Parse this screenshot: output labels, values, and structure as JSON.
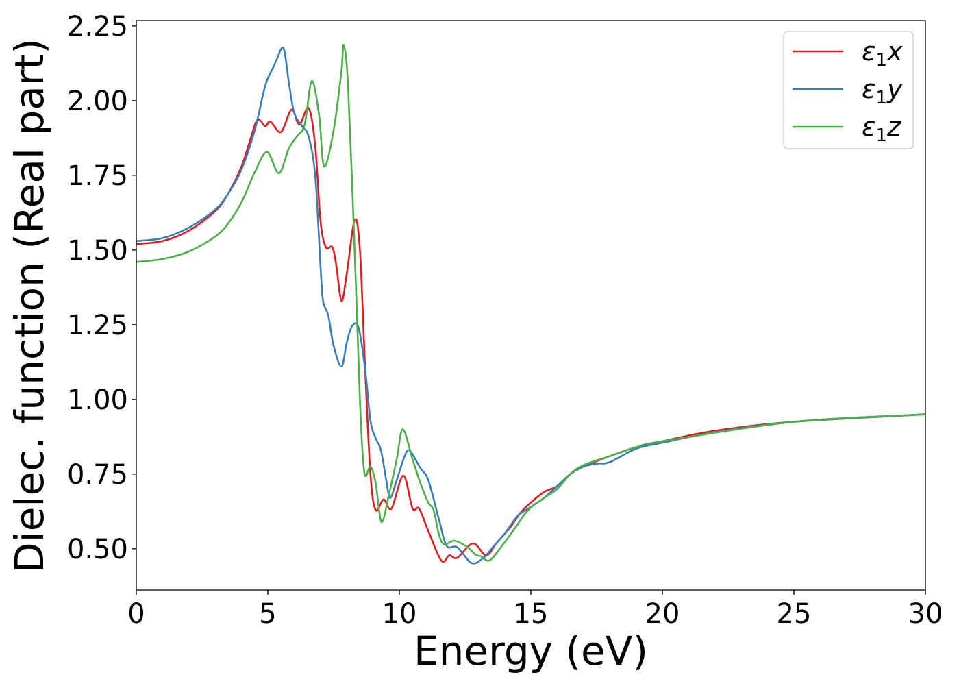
{
  "chart_data": {
    "type": "line",
    "title": "",
    "xlabel": "Energy (eV)",
    "ylabel": "Dielec. function (Real part)",
    "xlim": [
      0,
      30
    ],
    "ylim": [
      0.362,
      2.268
    ],
    "xticks": [
      0,
      5,
      10,
      15,
      20,
      25,
      30
    ],
    "xtick_labels": [
      "0",
      "5",
      "10",
      "15",
      "20",
      "25",
      "30"
    ],
    "yticks": [
      0.5,
      0.75,
      1.0,
      1.25,
      1.5,
      1.75,
      2.0,
      2.25
    ],
    "ytick_labels": [
      "0.50",
      "0.75",
      "1.00",
      "1.25",
      "1.50",
      "1.75",
      "2.00",
      "2.25"
    ],
    "grid": false,
    "legend_position": "top-right",
    "series": [
      {
        "name": "ε1x",
        "label_main": "ε",
        "label_sub": "1",
        "label_var": "x",
        "color": "#e41a1c",
        "x": [
          0,
          1,
          2,
          3,
          3.5,
          4,
          4.3,
          4.6,
          4.9,
          5.1,
          5.5,
          5.9,
          6.2,
          6.55,
          6.8,
          7.0,
          7.2,
          7.45,
          7.6,
          7.8,
          8.0,
          8.3,
          8.5,
          8.7,
          8.9,
          9.1,
          9.4,
          9.7,
          10.15,
          10.5,
          10.75,
          11.1,
          11.6,
          11.9,
          12.2,
          12.8,
          13.3,
          13.7,
          14.2,
          14.6,
          15,
          15.5,
          16,
          16.5,
          17,
          18,
          19,
          20,
          22,
          25,
          30
        ],
        "y": [
          1.52,
          1.53,
          1.565,
          1.63,
          1.69,
          1.78,
          1.86,
          1.935,
          1.915,
          1.93,
          1.895,
          1.97,
          1.92,
          1.975,
          1.85,
          1.6,
          1.51,
          1.51,
          1.45,
          1.33,
          1.42,
          1.6,
          1.5,
          1.1,
          0.75,
          0.63,
          0.665,
          0.635,
          0.745,
          0.635,
          0.635,
          0.56,
          0.46,
          0.478,
          0.47,
          0.518,
          0.478,
          0.52,
          0.57,
          0.62,
          0.655,
          0.69,
          0.71,
          0.75,
          0.775,
          0.81,
          0.84,
          0.86,
          0.895,
          0.925,
          0.95
        ]
      },
      {
        "name": "ε1y",
        "label_main": "ε",
        "label_sub": "1",
        "label_var": "y",
        "color": "#377eb8",
        "x": [
          0,
          1,
          2,
          3,
          3.5,
          4,
          4.5,
          4.9,
          5.2,
          5.35,
          5.6,
          5.8,
          6.0,
          6.3,
          6.55,
          6.8,
          7.0,
          7.1,
          7.3,
          7.5,
          7.8,
          8.0,
          8.2,
          8.45,
          8.7,
          8.9,
          9.1,
          9.3,
          9.5,
          9.65,
          9.9,
          10.2,
          10.4,
          10.8,
          11.1,
          11.5,
          11.8,
          12.2,
          12.75,
          13.2,
          13.6,
          14,
          14.5,
          15,
          15.5,
          16,
          16.5,
          17,
          17.5,
          18,
          19,
          20,
          22,
          25,
          30
        ],
        "y": [
          1.53,
          1.54,
          1.575,
          1.635,
          1.69,
          1.77,
          1.9,
          2.05,
          2.11,
          2.14,
          2.175,
          2.06,
          1.96,
          1.915,
          1.88,
          1.75,
          1.45,
          1.33,
          1.28,
          1.18,
          1.11,
          1.19,
          1.245,
          1.24,
          1.1,
          0.93,
          0.87,
          0.83,
          0.73,
          0.67,
          0.73,
          0.81,
          0.828,
          0.77,
          0.73,
          0.6,
          0.51,
          0.505,
          0.452,
          0.47,
          0.51,
          0.55,
          0.61,
          0.64,
          0.67,
          0.71,
          0.75,
          0.775,
          0.785,
          0.79,
          0.835,
          0.855,
          0.89,
          0.925,
          0.95
        ]
      },
      {
        "name": "ε1z",
        "label_main": "ε",
        "label_sub": "1",
        "label_var": "z",
        "color": "#4daf4a",
        "x": [
          0,
          1,
          2,
          3,
          3.5,
          4,
          4.5,
          4.97,
          5.42,
          5.8,
          6.1,
          6.4,
          6.67,
          6.95,
          7.14,
          7.5,
          7.8,
          7.88,
          8.05,
          8.3,
          8.5,
          8.62,
          8.72,
          8.9,
          9.1,
          9.32,
          9.6,
          9.9,
          10.13,
          10.5,
          10.8,
          11.1,
          11.3,
          11.5,
          11.7,
          12.1,
          12.6,
          12.9,
          13.1,
          13.43,
          13.9,
          14.4,
          14.9,
          15.5,
          16,
          16.5,
          17,
          18,
          19,
          20,
          25,
          30
        ],
        "y": [
          1.46,
          1.47,
          1.495,
          1.545,
          1.59,
          1.66,
          1.76,
          1.828,
          1.757,
          1.84,
          1.88,
          1.92,
          2.066,
          1.95,
          1.78,
          1.9,
          2.1,
          2.186,
          2.05,
          1.5,
          1.0,
          0.8,
          0.743,
          0.775,
          0.72,
          0.59,
          0.68,
          0.8,
          0.9,
          0.8,
          0.72,
          0.655,
          0.63,
          0.55,
          0.515,
          0.527,
          0.505,
          0.48,
          0.475,
          0.461,
          0.51,
          0.57,
          0.63,
          0.67,
          0.7,
          0.75,
          0.78,
          0.81,
          0.84,
          0.86,
          0.925,
          0.95
        ]
      }
    ]
  }
}
